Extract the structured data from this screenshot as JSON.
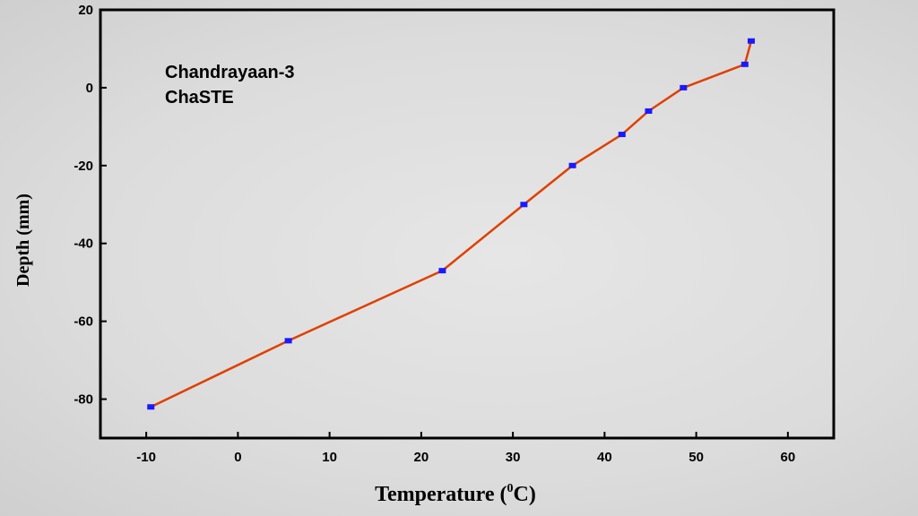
{
  "chart_data": {
    "type": "line",
    "annotation": [
      "Chandrayaan-3",
      "ChaSTE"
    ],
    "xlabel": {
      "main": "Temperature (",
      "sup": "0",
      "tail": "C)"
    },
    "ylabel": "Depth (mm)",
    "xlim": [
      -15,
      65
    ],
    "ylim": [
      -90,
      20
    ],
    "xticks": [
      -10,
      0,
      10,
      20,
      30,
      40,
      50,
      60
    ],
    "yticks": [
      20,
      0,
      -20,
      -40,
      -60,
      -80
    ],
    "xtick_labels": [
      "-10",
      "0",
      "10",
      "20",
      "30",
      "40",
      "50",
      "60"
    ],
    "ytick_labels": [
      "20",
      "0",
      "-20",
      "-40",
      "-60",
      "-80"
    ],
    "grid": false,
    "line_color": "#e04000",
    "marker_color": "#1a1aff",
    "series": [
      {
        "x": [
          -9.5,
          5.5,
          22.3,
          31.2,
          36.5,
          41.9,
          44.8,
          48.6,
          55.3,
          56.0
        ],
        "y": [
          -82,
          -65,
          -47,
          -30,
          -20,
          -12,
          -6,
          0,
          6,
          12
        ]
      }
    ]
  }
}
